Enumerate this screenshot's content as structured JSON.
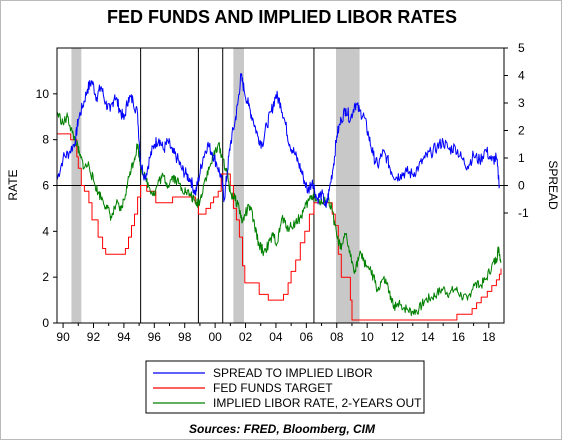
{
  "chart_data": {
    "type": "line",
    "title": "FED FUNDS AND IMPLIED LIBOR RATES",
    "ylabel_left": "RATE",
    "ylabel_right": "SPREAD",
    "source": "Sources: FRED, Bloomberg, CIM",
    "xlim": [
      1989.6,
      2019.0
    ],
    "ylim_left": [
      0,
      12
    ],
    "ylim_right": [
      -5,
      5
    ],
    "left_ticks": [
      0,
      2,
      4,
      6,
      8,
      10
    ],
    "right_ticks": [
      -1,
      0,
      1,
      2,
      3,
      4,
      5
    ],
    "x_ticks": [
      {
        "x": 1990,
        "label": "90"
      },
      {
        "x": 1992,
        "label": "92"
      },
      {
        "x": 1994,
        "label": "94"
      },
      {
        "x": 1996,
        "label": "96"
      },
      {
        "x": 1998,
        "label": "98"
      },
      {
        "x": 2000,
        "label": "00"
      },
      {
        "x": 2002,
        "label": "02"
      },
      {
        "x": 2004,
        "label": "04"
      },
      {
        "x": 2006,
        "label": "06"
      },
      {
        "x": 2008,
        "label": "08"
      },
      {
        "x": 2010,
        "label": "10"
      },
      {
        "x": 2012,
        "label": "12"
      },
      {
        "x": 2014,
        "label": "14"
      },
      {
        "x": 2016,
        "label": "16"
      },
      {
        "x": 2018,
        "label": "18"
      }
    ],
    "recessions": [
      [
        1990.55,
        1991.2
      ],
      [
        2001.2,
        2001.9
      ],
      [
        2007.95,
        2009.5
      ]
    ],
    "vertical_lines": [
      1995.1,
      1998.9,
      2000.5,
      2006.5
    ],
    "zero_line_right": 0,
    "legend_placement": "bottom-center",
    "colors": {
      "spread": "#0000ff",
      "fed_funds": "#ff0000",
      "libor": "#008000"
    },
    "series": [
      {
        "name": "SPREAD TO IMPLIED LIBOR",
        "axis": "right",
        "color": "#0000ff",
        "points": [
          [
            1989.6,
            0.2
          ],
          [
            1990.0,
            1.0
          ],
          [
            1990.4,
            1.2
          ],
          [
            1990.8,
            1.6
          ],
          [
            1991.0,
            2.4
          ],
          [
            1991.3,
            2.9
          ],
          [
            1991.6,
            3.5
          ],
          [
            1991.9,
            3.8
          ],
          [
            1992.2,
            3.2
          ],
          [
            1992.5,
            3.6
          ],
          [
            1992.8,
            3.0
          ],
          [
            1993.1,
            2.7
          ],
          [
            1993.4,
            3.3
          ],
          [
            1993.7,
            2.8
          ],
          [
            1994.0,
            2.4
          ],
          [
            1994.3,
            3.2
          ],
          [
            1994.6,
            3.1
          ],
          [
            1994.9,
            2.6
          ],
          [
            1995.1,
            0.8
          ],
          [
            1995.4,
            0.3
          ],
          [
            1995.7,
            1.0
          ],
          [
            1996.0,
            1.5
          ],
          [
            1996.3,
            1.7
          ],
          [
            1996.6,
            1.3
          ],
          [
            1996.9,
            1.6
          ],
          [
            1997.2,
            1.2
          ],
          [
            1997.5,
            1.0
          ],
          [
            1997.8,
            0.6
          ],
          [
            1998.1,
            0.4
          ],
          [
            1998.4,
            0.2
          ],
          [
            1998.7,
            -0.3
          ],
          [
            1998.9,
            0.2
          ],
          [
            1999.2,
            1.0
          ],
          [
            1999.5,
            1.5
          ],
          [
            1999.8,
            1.2
          ],
          [
            2000.1,
            0.8
          ],
          [
            2000.4,
            0.3
          ],
          [
            2000.6,
            -0.5
          ],
          [
            2000.8,
            0.5
          ],
          [
            2001.0,
            1.5
          ],
          [
            2001.3,
            2.3
          ],
          [
            2001.5,
            3.0
          ],
          [
            2001.7,
            4.0
          ],
          [
            2001.9,
            3.5
          ],
          [
            2002.2,
            2.9
          ],
          [
            2002.5,
            2.4
          ],
          [
            2002.8,
            1.8
          ],
          [
            2003.1,
            1.5
          ],
          [
            2003.4,
            2.2
          ],
          [
            2003.7,
            2.7
          ],
          [
            2004.0,
            3.3
          ],
          [
            2004.3,
            3.0
          ],
          [
            2004.6,
            2.3
          ],
          [
            2004.9,
            1.5
          ],
          [
            2005.2,
            1.2
          ],
          [
            2005.5,
            0.8
          ],
          [
            2005.8,
            0.3
          ],
          [
            2006.1,
            -0.2
          ],
          [
            2006.4,
            0.2
          ],
          [
            2006.7,
            -0.5
          ],
          [
            2007.0,
            -0.3
          ],
          [
            2007.3,
            -0.8
          ],
          [
            2007.5,
            -0.2
          ],
          [
            2007.8,
            0.8
          ],
          [
            2008.0,
            1.8
          ],
          [
            2008.3,
            2.4
          ],
          [
            2008.6,
            2.8
          ],
          [
            2008.9,
            2.4
          ],
          [
            2009.2,
            3.0
          ],
          [
            2009.5,
            2.7
          ],
          [
            2009.8,
            2.5
          ],
          [
            2010.1,
            1.8
          ],
          [
            2010.4,
            1.1
          ],
          [
            2010.7,
            0.7
          ],
          [
            2011.0,
            1.2
          ],
          [
            2011.3,
            1.0
          ],
          [
            2011.6,
            0.5
          ],
          [
            2011.9,
            0.3
          ],
          [
            2012.2,
            0.4
          ],
          [
            2012.6,
            0.5
          ],
          [
            2013.0,
            0.4
          ],
          [
            2013.4,
            0.7
          ],
          [
            2013.8,
            1.0
          ],
          [
            2014.2,
            1.2
          ],
          [
            2014.6,
            1.4
          ],
          [
            2015.0,
            1.6
          ],
          [
            2015.4,
            1.3
          ],
          [
            2015.8,
            1.4
          ],
          [
            2016.2,
            1.0
          ],
          [
            2016.6,
            0.7
          ],
          [
            2017.0,
            1.1
          ],
          [
            2017.4,
            0.9
          ],
          [
            2017.8,
            1.3
          ],
          [
            2018.2,
            0.9
          ],
          [
            2018.5,
            1.0
          ],
          [
            2018.7,
            0.0
          ]
        ]
      },
      {
        "name": "FED FUNDS TARGET",
        "axis": "left",
        "color": "#ff0000",
        "points": [
          [
            1989.6,
            8.25
          ],
          [
            1990.5,
            8.0
          ],
          [
            1990.9,
            7.25
          ],
          [
            1991.0,
            6.75
          ],
          [
            1991.2,
            6.0
          ],
          [
            1991.4,
            5.75
          ],
          [
            1991.7,
            5.25
          ],
          [
            1991.9,
            4.5
          ],
          [
            1992.3,
            3.75
          ],
          [
            1992.6,
            3.25
          ],
          [
            1992.8,
            3.0
          ],
          [
            1994.1,
            3.25
          ],
          [
            1994.3,
            3.75
          ],
          [
            1994.5,
            4.25
          ],
          [
            1994.7,
            4.75
          ],
          [
            1994.9,
            5.5
          ],
          [
            1995.1,
            6.0
          ],
          [
            1995.5,
            5.75
          ],
          [
            1996.1,
            5.25
          ],
          [
            1997.2,
            5.5
          ],
          [
            1998.7,
            5.25
          ],
          [
            1998.9,
            4.75
          ],
          [
            1999.4,
            5.0
          ],
          [
            1999.7,
            5.25
          ],
          [
            1999.9,
            5.5
          ],
          [
            2000.2,
            5.75
          ],
          [
            2000.4,
            6.5
          ],
          [
            2001.0,
            6.0
          ],
          [
            2001.2,
            5.0
          ],
          [
            2001.4,
            4.5
          ],
          [
            2001.6,
            3.75
          ],
          [
            2001.8,
            2.5
          ],
          [
            2001.95,
            1.75
          ],
          [
            2002.9,
            1.25
          ],
          [
            2003.5,
            1.0
          ],
          [
            2004.5,
            1.25
          ],
          [
            2004.8,
            1.75
          ],
          [
            2005.0,
            2.25
          ],
          [
            2005.3,
            2.75
          ],
          [
            2005.6,
            3.5
          ],
          [
            2005.9,
            4.0
          ],
          [
            2006.2,
            4.75
          ],
          [
            2006.5,
            5.25
          ],
          [
            2007.7,
            4.75
          ],
          [
            2007.9,
            4.25
          ],
          [
            2008.1,
            3.0
          ],
          [
            2008.3,
            2.0
          ],
          [
            2008.9,
            1.0
          ],
          [
            2009.0,
            0.13
          ],
          [
            2015.9,
            0.38
          ],
          [
            2016.9,
            0.63
          ],
          [
            2017.2,
            0.88
          ],
          [
            2017.5,
            1.13
          ],
          [
            2017.9,
            1.38
          ],
          [
            2018.2,
            1.63
          ],
          [
            2018.5,
            1.88
          ],
          [
            2018.7,
            2.13
          ],
          [
            2018.8,
            2.38
          ]
        ]
      },
      {
        "name": "IMPLIED LIBOR RATE, 2-YEARS OUT",
        "axis": "left",
        "color": "#008000",
        "points": [
          [
            1989.6,
            9.2
          ],
          [
            1990.0,
            8.7
          ],
          [
            1990.3,
            9.0
          ],
          [
            1990.6,
            8.3
          ],
          [
            1990.9,
            7.8
          ],
          [
            1991.1,
            7.3
          ],
          [
            1991.4,
            6.8
          ],
          [
            1991.7,
            6.9
          ],
          [
            1992.0,
            6.2
          ],
          [
            1992.3,
            5.7
          ],
          [
            1992.6,
            5.4
          ],
          [
            1992.9,
            5.0
          ],
          [
            1993.2,
            4.6
          ],
          [
            1993.5,
            5.2
          ],
          [
            1993.8,
            4.9
          ],
          [
            1994.1,
            5.6
          ],
          [
            1994.4,
            6.6
          ],
          [
            1994.7,
            7.2
          ],
          [
            1994.9,
            7.8
          ],
          [
            1995.1,
            6.9
          ],
          [
            1995.4,
            6.3
          ],
          [
            1995.7,
            5.9
          ],
          [
            1996.0,
            5.6
          ],
          [
            1996.3,
            6.2
          ],
          [
            1996.6,
            6.4
          ],
          [
            1996.9,
            6.0
          ],
          [
            1997.2,
            6.4
          ],
          [
            1997.5,
            6.2
          ],
          [
            1997.8,
            5.9
          ],
          [
            1998.1,
            5.7
          ],
          [
            1998.4,
            5.6
          ],
          [
            1998.7,
            5.2
          ],
          [
            1999.0,
            5.3
          ],
          [
            1999.3,
            6.2
          ],
          [
            1999.6,
            6.7
          ],
          [
            1999.9,
            7.3
          ],
          [
            2000.2,
            7.8
          ],
          [
            2000.5,
            7.2
          ],
          [
            2000.8,
            6.5
          ],
          [
            2001.0,
            5.7
          ],
          [
            2001.2,
            5.5
          ],
          [
            2001.5,
            5.2
          ],
          [
            2001.8,
            4.4
          ],
          [
            2002.0,
            4.8
          ],
          [
            2002.3,
            5.1
          ],
          [
            2002.6,
            4.2
          ],
          [
            2002.9,
            3.4
          ],
          [
            2003.2,
            3.1
          ],
          [
            2003.5,
            3.4
          ],
          [
            2003.8,
            3.8
          ],
          [
            2004.1,
            3.5
          ],
          [
            2004.4,
            4.6
          ],
          [
            2004.7,
            4.2
          ],
          [
            2005.0,
            4.2
          ],
          [
            2005.3,
            4.4
          ],
          [
            2005.6,
            4.6
          ],
          [
            2005.9,
            5.0
          ],
          [
            2006.2,
            5.4
          ],
          [
            2006.5,
            5.6
          ],
          [
            2006.8,
            5.3
          ],
          [
            2007.1,
            5.2
          ],
          [
            2007.4,
            5.4
          ],
          [
            2007.7,
            4.9
          ],
          [
            2008.0,
            3.8
          ],
          [
            2008.3,
            3.2
          ],
          [
            2008.6,
            3.9
          ],
          [
            2008.9,
            2.9
          ],
          [
            2009.2,
            2.3
          ],
          [
            2009.5,
            3.0
          ],
          [
            2009.8,
            2.7
          ],
          [
            2010.1,
            2.4
          ],
          [
            2010.4,
            2.0
          ],
          [
            2010.7,
            1.4
          ],
          [
            2011.0,
            1.9
          ],
          [
            2011.3,
            1.7
          ],
          [
            2011.6,
            0.9
          ],
          [
            2011.9,
            0.7
          ],
          [
            2012.2,
            0.8
          ],
          [
            2012.6,
            0.6
          ],
          [
            2013.0,
            0.5
          ],
          [
            2013.4,
            0.6
          ],
          [
            2013.8,
            1.0
          ],
          [
            2014.2,
            1.1
          ],
          [
            2014.6,
            1.3
          ],
          [
            2015.0,
            1.5
          ],
          [
            2015.4,
            1.3
          ],
          [
            2015.8,
            1.5
          ],
          [
            2016.2,
            1.2
          ],
          [
            2016.6,
            1.0
          ],
          [
            2017.0,
            1.7
          ],
          [
            2017.4,
            1.6
          ],
          [
            2017.8,
            1.9
          ],
          [
            2018.2,
            2.5
          ],
          [
            2018.5,
            2.8
          ],
          [
            2018.65,
            3.3
          ],
          [
            2018.8,
            2.7
          ]
        ]
      }
    ]
  }
}
